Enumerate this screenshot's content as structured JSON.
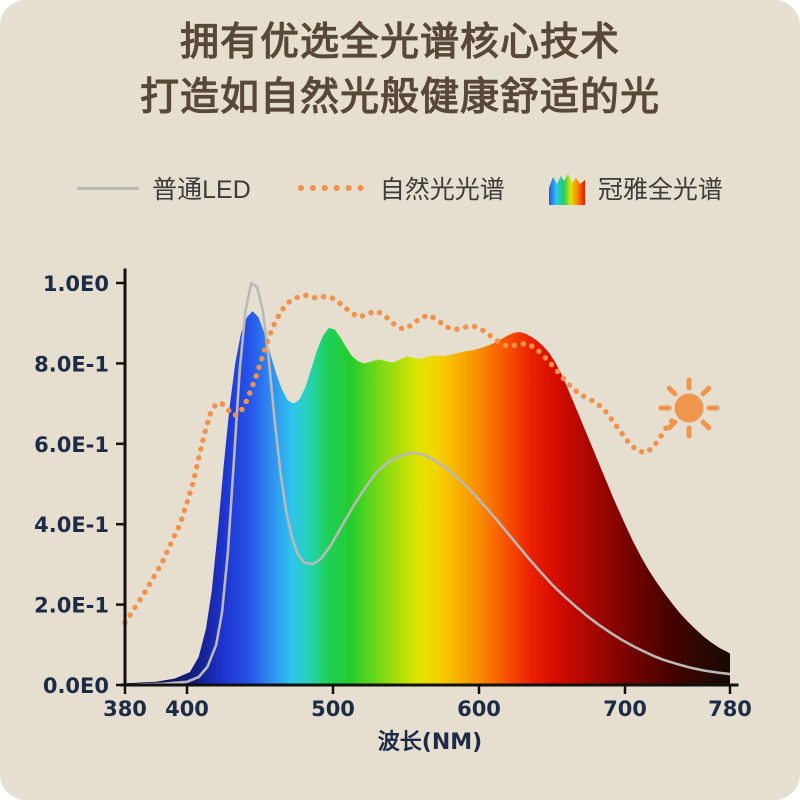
{
  "title": {
    "line1": "拥有优选全光谱核心技术",
    "line2": "打造如自然光般健康舒适的光"
  },
  "legend": [
    {
      "label": "普通LED",
      "swatch": "gray-line"
    },
    {
      "label": "自然光光谱",
      "swatch": "orange-dots"
    },
    {
      "label": "冠雅全光谱",
      "swatch": "rainbow-spectrum"
    }
  ],
  "colors": {
    "background": "#e6dfd0",
    "frame": "#ffffff",
    "title_text": "#594737",
    "axis": "#111111",
    "tick_text": "#1c2b46",
    "legend_text": "#3b3b3b",
    "ordinary_led": "#b9b9b9",
    "natural_light": "#f0914c",
    "sun": "#f0954d"
  },
  "chart_data": {
    "type": "area",
    "title": "",
    "xlabel": "波长(NM)",
    "ylabel": "",
    "xlim": [
      380,
      780
    ],
    "ylim": [
      0,
      1.0
    ],
    "grid": false,
    "legend_position": "top",
    "x_ticks": [
      {
        "label": "380",
        "value": 380
      },
      {
        "label": "400",
        "value": 400
      },
      {
        "label": "500",
        "value": 500
      },
      {
        "label": "600",
        "value": 600
      },
      {
        "label": "700",
        "value": 700
      },
      {
        "label": "780",
        "value": 780
      }
    ],
    "y_ticks": [
      {
        "label": "1.0E0",
        "value": 1.0
      },
      {
        "label": "8.0E-1",
        "value": 0.8
      },
      {
        "label": "6.0E-1",
        "value": 0.6
      },
      {
        "label": "4.0E-1",
        "value": 0.4
      },
      {
        "label": "2.0E-1",
        "value": 0.2
      },
      {
        "label": "0.0E0",
        "value": 0.0
      }
    ],
    "series": [
      {
        "name": "冠雅全光谱",
        "type": "area",
        "gradient": [
          [
            380,
            "#07071e"
          ],
          [
            408,
            "#141f8c"
          ],
          [
            425,
            "#1e34cf"
          ],
          [
            443,
            "#2653e8"
          ],
          [
            458,
            "#2f8ef0"
          ],
          [
            472,
            "#2ec4ee"
          ],
          [
            484,
            "#25d3b2"
          ],
          [
            496,
            "#1fd05a"
          ],
          [
            512,
            "#25cc2e"
          ],
          [
            528,
            "#66d818"
          ],
          [
            544,
            "#a8de0a"
          ],
          [
            558,
            "#dfe400"
          ],
          [
            572,
            "#f4d300"
          ],
          [
            586,
            "#f8b000"
          ],
          [
            600,
            "#f88d00"
          ],
          [
            612,
            "#f86700"
          ],
          [
            624,
            "#f44300"
          ],
          [
            636,
            "#ea2000"
          ],
          [
            650,
            "#d90e00"
          ],
          [
            668,
            "#b80800"
          ],
          [
            688,
            "#920500"
          ],
          [
            710,
            "#6b0300"
          ],
          [
            735,
            "#460200"
          ],
          [
            760,
            "#2a0703"
          ],
          [
            780,
            "#170a05"
          ]
        ],
        "points": [
          [
            380,
            0.004
          ],
          [
            390,
            0.008
          ],
          [
            396,
            0.016
          ],
          [
            402,
            0.032
          ],
          [
            408,
            0.07
          ],
          [
            413,
            0.14
          ],
          [
            417,
            0.235
          ],
          [
            421,
            0.38
          ],
          [
            425,
            0.54
          ],
          [
            429,
            0.685
          ],
          [
            433,
            0.8
          ],
          [
            437,
            0.875
          ],
          [
            441,
            0.915
          ],
          [
            445,
            0.93
          ],
          [
            449,
            0.915
          ],
          [
            453,
            0.875
          ],
          [
            457,
            0.825
          ],
          [
            461,
            0.775
          ],
          [
            465,
            0.735
          ],
          [
            469,
            0.708
          ],
          [
            473,
            0.7
          ],
          [
            477,
            0.71
          ],
          [
            481,
            0.74
          ],
          [
            485,
            0.785
          ],
          [
            489,
            0.832
          ],
          [
            493,
            0.868
          ],
          [
            497,
            0.888
          ],
          [
            501,
            0.885
          ],
          [
            505,
            0.865
          ],
          [
            509,
            0.84
          ],
          [
            513,
            0.818
          ],
          [
            517,
            0.806
          ],
          [
            521,
            0.8
          ],
          [
            526,
            0.804
          ],
          [
            531,
            0.81
          ],
          [
            536,
            0.806
          ],
          [
            541,
            0.802
          ],
          [
            546,
            0.81
          ],
          [
            551,
            0.818
          ],
          [
            556,
            0.813
          ],
          [
            561,
            0.812
          ],
          [
            566,
            0.818
          ],
          [
            571,
            0.82
          ],
          [
            576,
            0.818
          ],
          [
            581,
            0.822
          ],
          [
            586,
            0.826
          ],
          [
            591,
            0.83
          ],
          [
            596,
            0.833
          ],
          [
            601,
            0.838
          ],
          [
            606,
            0.844
          ],
          [
            611,
            0.852
          ],
          [
            616,
            0.862
          ],
          [
            620,
            0.87
          ],
          [
            624,
            0.876
          ],
          [
            628,
            0.878
          ],
          [
            632,
            0.874
          ],
          [
            636,
            0.866
          ],
          [
            640,
            0.856
          ],
          [
            644,
            0.843
          ],
          [
            648,
            0.826
          ],
          [
            652,
            0.804
          ],
          [
            656,
            0.776
          ],
          [
            660,
            0.744
          ],
          [
            664,
            0.71
          ],
          [
            668,
            0.675
          ],
          [
            672,
            0.64
          ],
          [
            676,
            0.605
          ],
          [
            680,
            0.57
          ],
          [
            684,
            0.535
          ],
          [
            688,
            0.5
          ],
          [
            692,
            0.465
          ],
          [
            696,
            0.432
          ],
          [
            700,
            0.4
          ],
          [
            706,
            0.358
          ],
          [
            712,
            0.32
          ],
          [
            718,
            0.286
          ],
          [
            724,
            0.256
          ],
          [
            730,
            0.228
          ],
          [
            736,
            0.202
          ],
          [
            742,
            0.178
          ],
          [
            748,
            0.157
          ],
          [
            754,
            0.138
          ],
          [
            760,
            0.12
          ],
          [
            766,
            0.105
          ],
          [
            772,
            0.092
          ],
          [
            778,
            0.082
          ],
          [
            780,
            0.078
          ]
        ]
      },
      {
        "name": "普通LED",
        "type": "line",
        "color": "#b9b9b9",
        "points": [
          [
            380,
            0.0
          ],
          [
            392,
            0.003
          ],
          [
            400,
            0.008
          ],
          [
            408,
            0.02
          ],
          [
            414,
            0.045
          ],
          [
            420,
            0.1
          ],
          [
            424,
            0.18
          ],
          [
            428,
            0.33
          ],
          [
            432,
            0.55
          ],
          [
            436,
            0.78
          ],
          [
            440,
            0.93
          ],
          [
            444,
            1.0
          ],
          [
            448,
            0.99
          ],
          [
            452,
            0.93
          ],
          [
            456,
            0.81
          ],
          [
            460,
            0.66
          ],
          [
            464,
            0.53
          ],
          [
            468,
            0.43
          ],
          [
            472,
            0.365
          ],
          [
            476,
            0.325
          ],
          [
            480,
            0.305
          ],
          [
            486,
            0.3
          ],
          [
            492,
            0.315
          ],
          [
            498,
            0.345
          ],
          [
            506,
            0.395
          ],
          [
            514,
            0.445
          ],
          [
            522,
            0.49
          ],
          [
            530,
            0.53
          ],
          [
            538,
            0.555
          ],
          [
            546,
            0.57
          ],
          [
            554,
            0.578
          ],
          [
            562,
            0.573
          ],
          [
            570,
            0.558
          ],
          [
            578,
            0.538
          ],
          [
            586,
            0.513
          ],
          [
            594,
            0.485
          ],
          [
            602,
            0.453
          ],
          [
            610,
            0.42
          ],
          [
            618,
            0.385
          ],
          [
            626,
            0.35
          ],
          [
            634,
            0.315
          ],
          [
            642,
            0.282
          ],
          [
            650,
            0.25
          ],
          [
            658,
            0.222
          ],
          [
            666,
            0.196
          ],
          [
            674,
            0.172
          ],
          [
            682,
            0.15
          ],
          [
            690,
            0.13
          ],
          [
            698,
            0.112
          ],
          [
            706,
            0.097
          ],
          [
            714,
            0.084
          ],
          [
            722,
            0.072
          ],
          [
            730,
            0.062
          ],
          [
            740,
            0.052
          ],
          [
            750,
            0.043
          ],
          [
            760,
            0.036
          ],
          [
            770,
            0.031
          ],
          [
            780,
            0.027
          ]
        ]
      },
      {
        "name": "自然光光谱",
        "type": "dotted",
        "color": "#f0914c",
        "points": [
          [
            380,
            0.155
          ],
          [
            386,
            0.225
          ],
          [
            392,
            0.305
          ],
          [
            398,
            0.405
          ],
          [
            404,
            0.5
          ],
          [
            408,
            0.565
          ],
          [
            412,
            0.625
          ],
          [
            416,
            0.675
          ],
          [
            420,
            0.7
          ],
          [
            424,
            0.7
          ],
          [
            428,
            0.685
          ],
          [
            432,
            0.67
          ],
          [
            436,
            0.675
          ],
          [
            440,
            0.7
          ],
          [
            444,
            0.735
          ],
          [
            448,
            0.775
          ],
          [
            452,
            0.82
          ],
          [
            456,
            0.865
          ],
          [
            460,
            0.9
          ],
          [
            465,
            0.933
          ],
          [
            470,
            0.953
          ],
          [
            476,
            0.965
          ],
          [
            482,
            0.97
          ],
          [
            488,
            0.963
          ],
          [
            494,
            0.966
          ],
          [
            500,
            0.962
          ],
          [
            506,
            0.946
          ],
          [
            512,
            0.927
          ],
          [
            518,
            0.915
          ],
          [
            524,
            0.924
          ],
          [
            530,
            0.93
          ],
          [
            536,
            0.917
          ],
          [
            542,
            0.897
          ],
          [
            548,
            0.885
          ],
          [
            554,
            0.895
          ],
          [
            560,
            0.914
          ],
          [
            566,
            0.92
          ],
          [
            572,
            0.906
          ],
          [
            578,
            0.89
          ],
          [
            584,
            0.884
          ],
          [
            590,
            0.89
          ],
          [
            596,
            0.893
          ],
          [
            602,
            0.884
          ],
          [
            608,
            0.868
          ],
          [
            614,
            0.852
          ],
          [
            620,
            0.842
          ],
          [
            626,
            0.846
          ],
          [
            632,
            0.85
          ],
          [
            638,
            0.84
          ],
          [
            644,
            0.82
          ],
          [
            650,
            0.796
          ],
          [
            656,
            0.77
          ],
          [
            662,
            0.746
          ],
          [
            668,
            0.726
          ],
          [
            674,
            0.714
          ],
          [
            680,
            0.703
          ],
          [
            686,
            0.684
          ],
          [
            692,
            0.655
          ],
          [
            698,
            0.625
          ],
          [
            704,
            0.598
          ],
          [
            710,
            0.582
          ],
          [
            716,
            0.578
          ],
          [
            721,
            0.59
          ],
          [
            726,
            0.612
          ],
          [
            731,
            0.638
          ],
          [
            736,
            0.658
          ],
          [
            741,
            0.665
          ]
        ]
      }
    ]
  }
}
